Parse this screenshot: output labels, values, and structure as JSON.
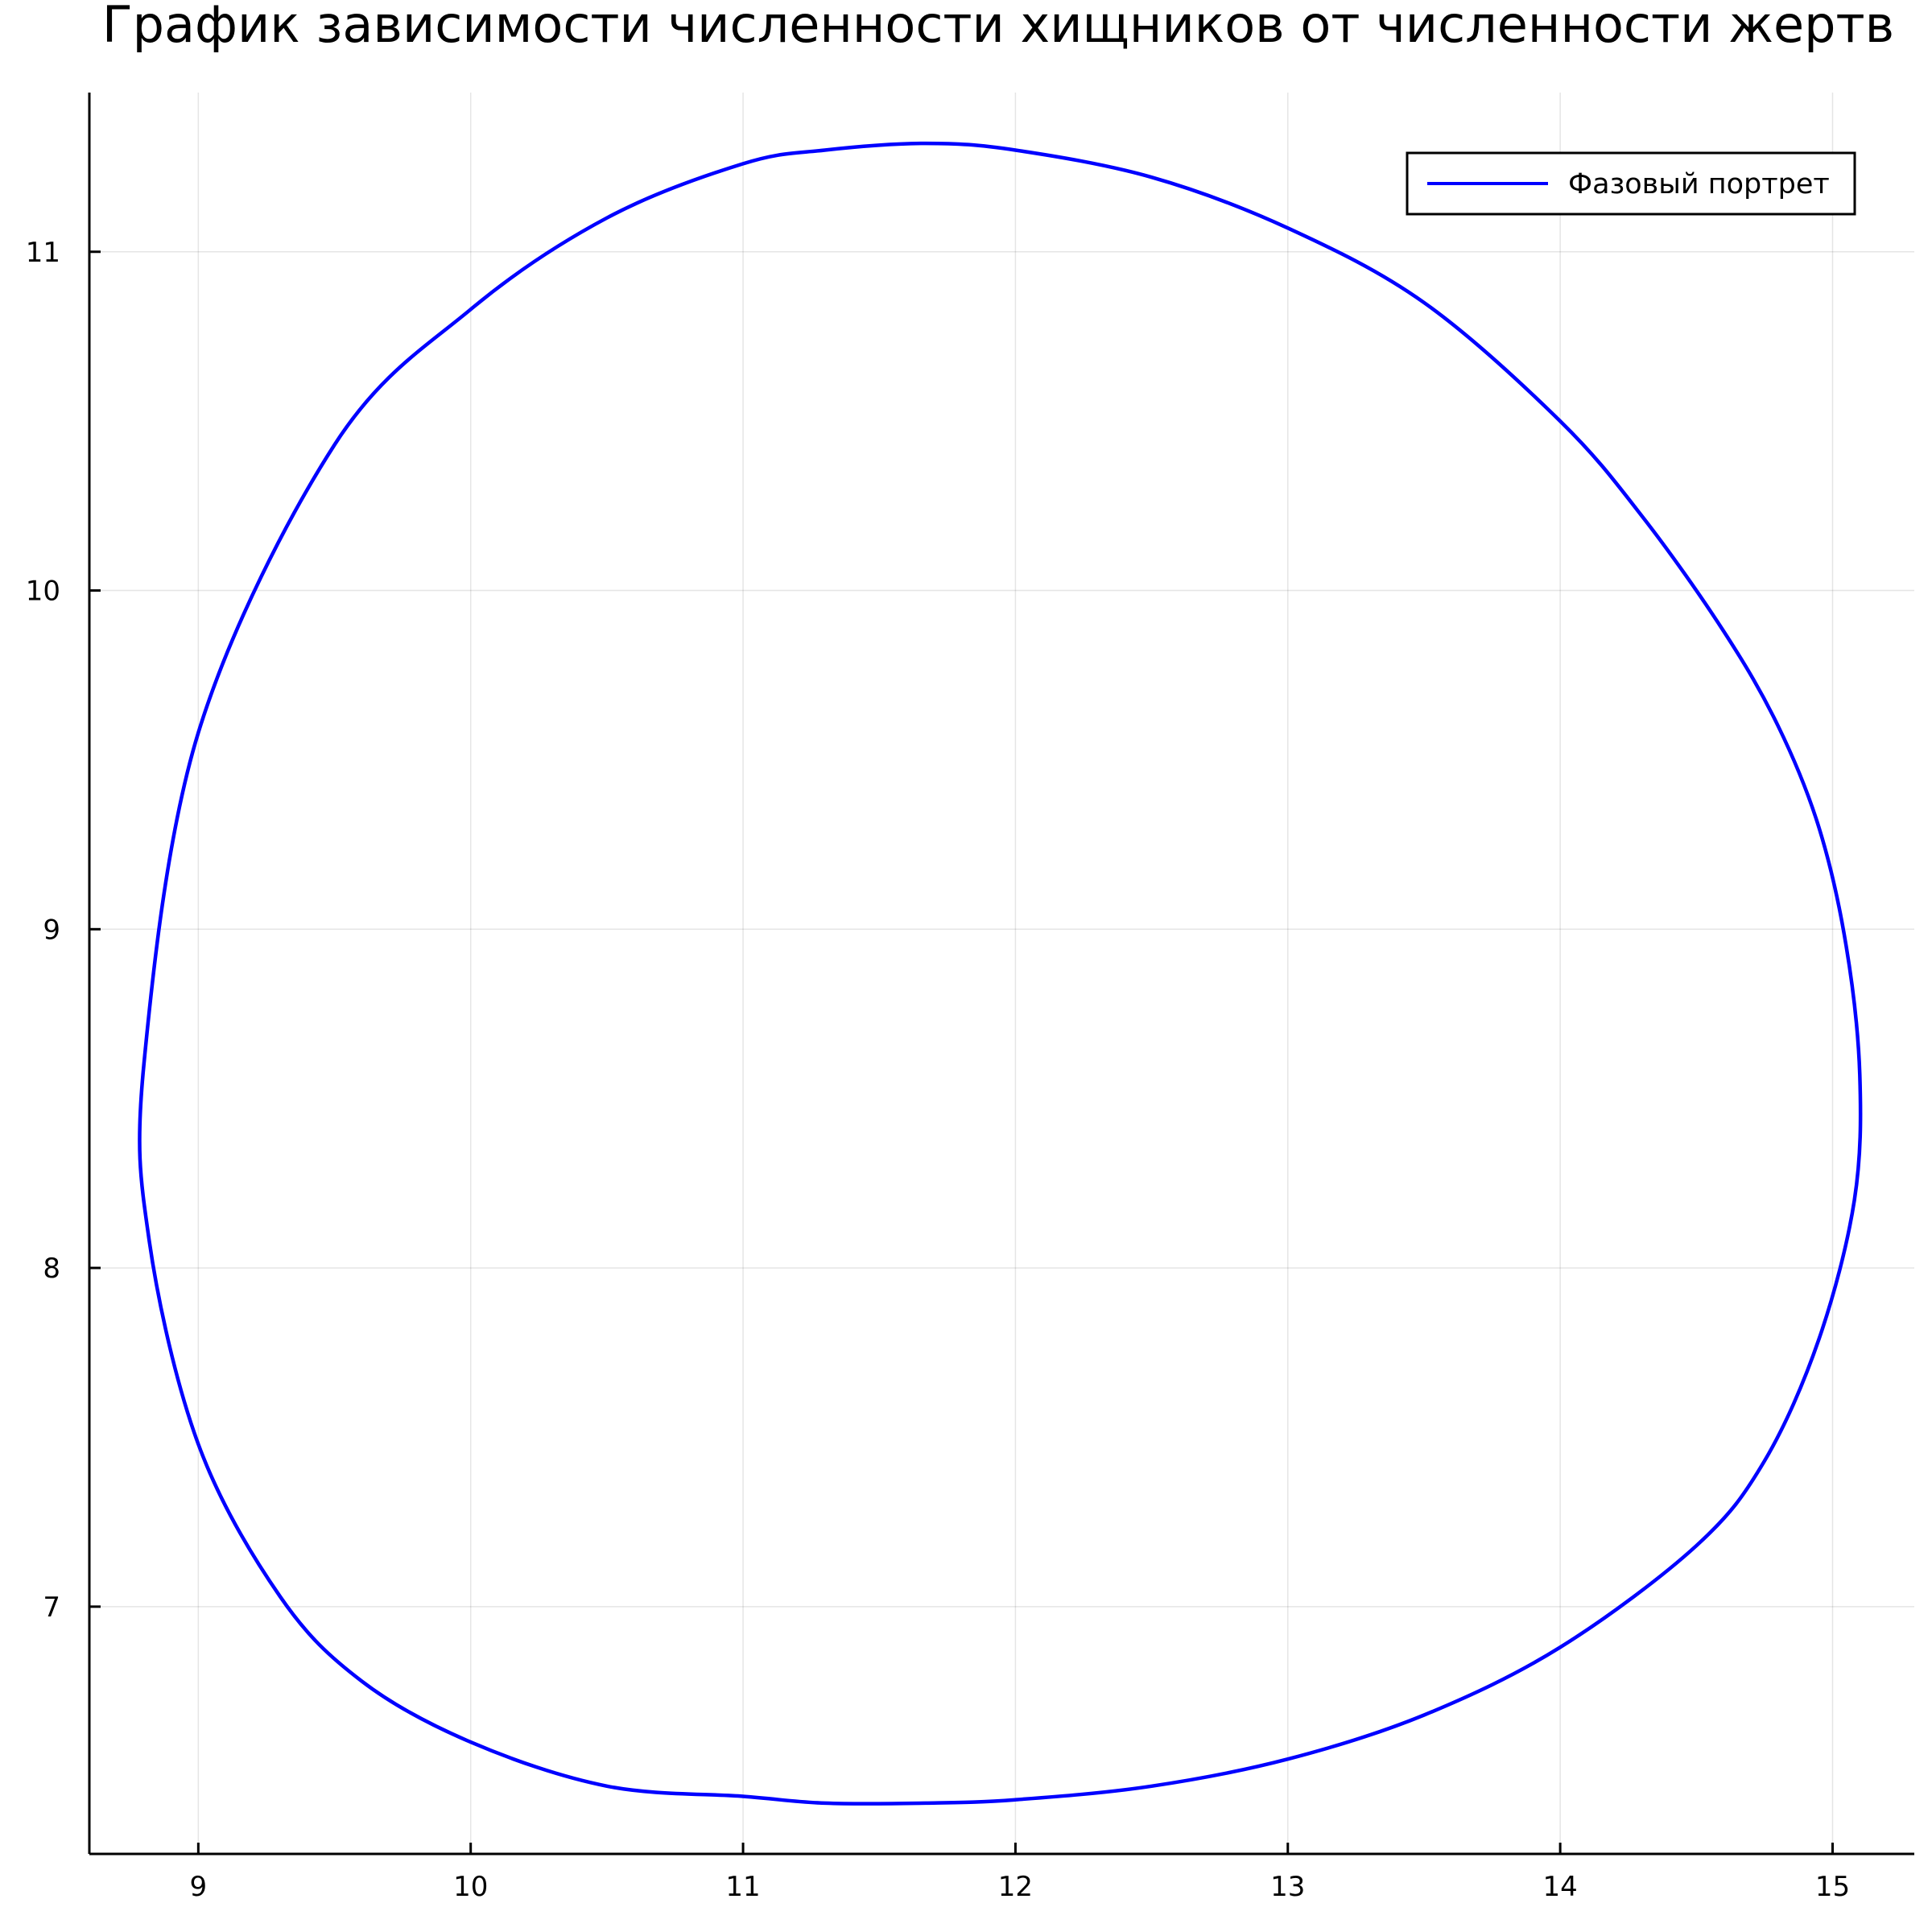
{
  "chart_data": {
    "type": "line",
    "title": "График зависимости численности хищников от численности жертв",
    "xlabel": "",
    "ylabel": "",
    "xlim": [
      8.6,
      15.3
    ],
    "ylim": [
      6.27,
      11.47
    ],
    "xticks": [
      9,
      10,
      11,
      12,
      13,
      14,
      15
    ],
    "yticks": [
      7,
      8,
      9,
      10,
      11
    ],
    "grid": true,
    "legend_position": "top-right",
    "series": [
      {
        "name": "Фазовый портрет",
        "color": "#0000ff",
        "x": [
          11.67,
          12.0,
          12.5,
          13.0,
          13.5,
          14.0,
          14.5,
          14.75,
          14.95,
          15.08,
          15.1,
          15.05,
          14.95,
          14.8,
          14.6,
          14.3,
          14.0,
          13.5,
          13.0,
          12.5,
          12.0,
          11.67,
          11.3,
          11.0,
          10.5,
          10.0,
          9.5,
          9.0,
          8.8,
          8.82,
          9.0,
          9.3,
          9.6,
          10.0,
          10.5,
          11.0,
          11.3,
          11.67
        ],
        "y": [
          6.42,
          6.43,
          6.47,
          6.55,
          6.68,
          6.88,
          7.18,
          7.43,
          7.79,
          8.2,
          8.57,
          8.95,
          9.3,
          9.6,
          9.88,
          10.22,
          10.5,
          10.85,
          11.07,
          11.22,
          11.3,
          11.32,
          11.3,
          11.26,
          11.1,
          10.83,
          10.43,
          9.58,
          8.6,
          8.08,
          7.48,
          7.03,
          6.78,
          6.6,
          6.47,
          6.44,
          6.42,
          6.42
        ]
      }
    ]
  }
}
